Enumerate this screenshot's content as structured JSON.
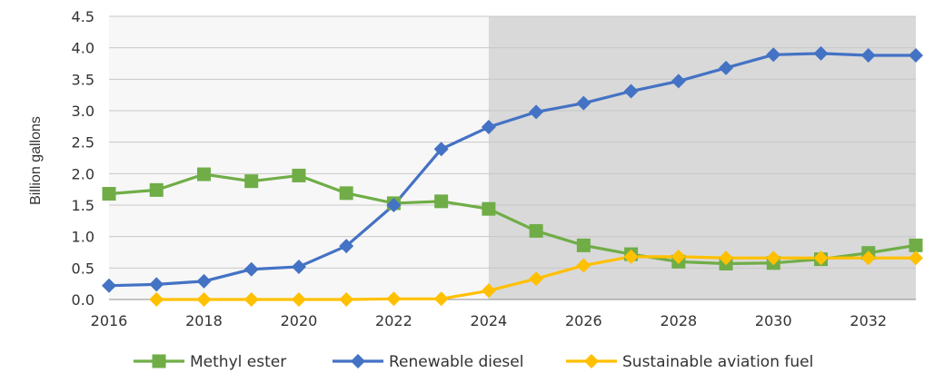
{
  "chart_data": {
    "type": "line",
    "title": "",
    "xlabel": "",
    "ylabel": "Billion gallons",
    "xlim": [
      2016,
      2033
    ],
    "ylim": [
      0,
      4.5
    ],
    "x_ticks": [
      "2016",
      "2018",
      "2020",
      "2022",
      "2024",
      "2026",
      "2028",
      "2030",
      "2032"
    ],
    "y_ticks": [
      "0.0",
      "0.5",
      "1.0",
      "1.5",
      "2.0",
      "2.5",
      "3.0",
      "3.5",
      "4.0",
      "4.5"
    ],
    "grid": true,
    "shaded_region": {
      "x_start": 2024,
      "x_end": 2033,
      "color": "#d9d9d9"
    },
    "legend_position": "bottom",
    "series": [
      {
        "name": "Methyl ester",
        "color": "#70ad47",
        "marker": "square",
        "x": [
          2016,
          2017,
          2018,
          2019,
          2020,
          2021,
          2022,
          2023,
          2024,
          2025,
          2026,
          2027,
          2028,
          2029,
          2030,
          2031,
          2032,
          2033
        ],
        "values": [
          1.68,
          1.74,
          1.99,
          1.88,
          1.97,
          1.69,
          1.53,
          1.56,
          1.44,
          1.09,
          0.86,
          0.72,
          0.6,
          0.57,
          0.58,
          0.64,
          0.74,
          0.86
        ]
      },
      {
        "name": "Renewable diesel",
        "color": "#4472c4",
        "marker": "diamond",
        "x": [
          2016,
          2017,
          2018,
          2019,
          2020,
          2021,
          2022,
          2023,
          2024,
          2025,
          2026,
          2027,
          2028,
          2029,
          2030,
          2031,
          2032,
          2033
        ],
        "values": [
          0.22,
          0.24,
          0.29,
          0.48,
          0.52,
          0.85,
          1.5,
          2.39,
          2.74,
          2.98,
          3.12,
          3.31,
          3.47,
          3.68,
          3.89,
          3.91,
          3.88,
          3.88
        ]
      },
      {
        "name": "Sustainable aviation fuel",
        "color": "#ffc000",
        "marker": "diamond",
        "x": [
          2017,
          2018,
          2019,
          2020,
          2021,
          2022,
          2023,
          2024,
          2025,
          2026,
          2027,
          2028,
          2029,
          2030,
          2031,
          2032,
          2033
        ],
        "values": [
          0.0,
          0.0,
          0.0,
          0.0,
          0.0,
          0.01,
          0.01,
          0.14,
          0.33,
          0.54,
          0.68,
          0.68,
          0.66,
          0.66,
          0.66,
          0.66,
          0.66
        ]
      }
    ]
  }
}
